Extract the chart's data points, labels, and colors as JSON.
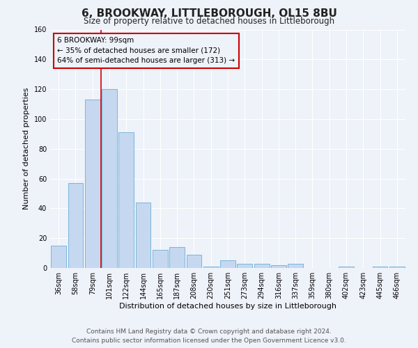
{
  "title": "6, BROOKWAY, LITTLEBOROUGH, OL15 8BU",
  "subtitle": "Size of property relative to detached houses in Littleborough",
  "xlabel": "Distribution of detached houses by size in Littleborough",
  "ylabel": "Number of detached properties",
  "bar_labels": [
    "36sqm",
    "58sqm",
    "79sqm",
    "101sqm",
    "122sqm",
    "144sqm",
    "165sqm",
    "187sqm",
    "208sqm",
    "230sqm",
    "251sqm",
    "273sqm",
    "294sqm",
    "316sqm",
    "337sqm",
    "359sqm",
    "380sqm",
    "402sqm",
    "423sqm",
    "445sqm",
    "466sqm"
  ],
  "bar_values": [
    15,
    57,
    113,
    120,
    91,
    44,
    12,
    14,
    9,
    1,
    5,
    3,
    3,
    2,
    3,
    0,
    0,
    1,
    0,
    1,
    1
  ],
  "bar_color": "#c5d8f0",
  "bar_edge_color": "#6aaed6",
  "vline_index": 3,
  "vline_color": "#cc0000",
  "ylim": [
    0,
    160
  ],
  "yticks": [
    0,
    20,
    40,
    60,
    80,
    100,
    120,
    140,
    160
  ],
  "annotation_title": "6 BROOKWAY: 99sqm",
  "annotation_line1": "← 35% of detached houses are smaller (172)",
  "annotation_line2": "64% of semi-detached houses are larger (313) →",
  "annotation_box_color": "#cc0000",
  "footer_line1": "Contains HM Land Registry data © Crown copyright and database right 2024.",
  "footer_line2": "Contains public sector information licensed under the Open Government Licence v3.0.",
  "background_color": "#eef2f9",
  "grid_color": "#ffffff",
  "title_fontsize": 11,
  "subtitle_fontsize": 8.5,
  "axis_label_fontsize": 8,
  "tick_fontsize": 7,
  "annotation_fontsize": 7.5,
  "footer_fontsize": 6.5
}
